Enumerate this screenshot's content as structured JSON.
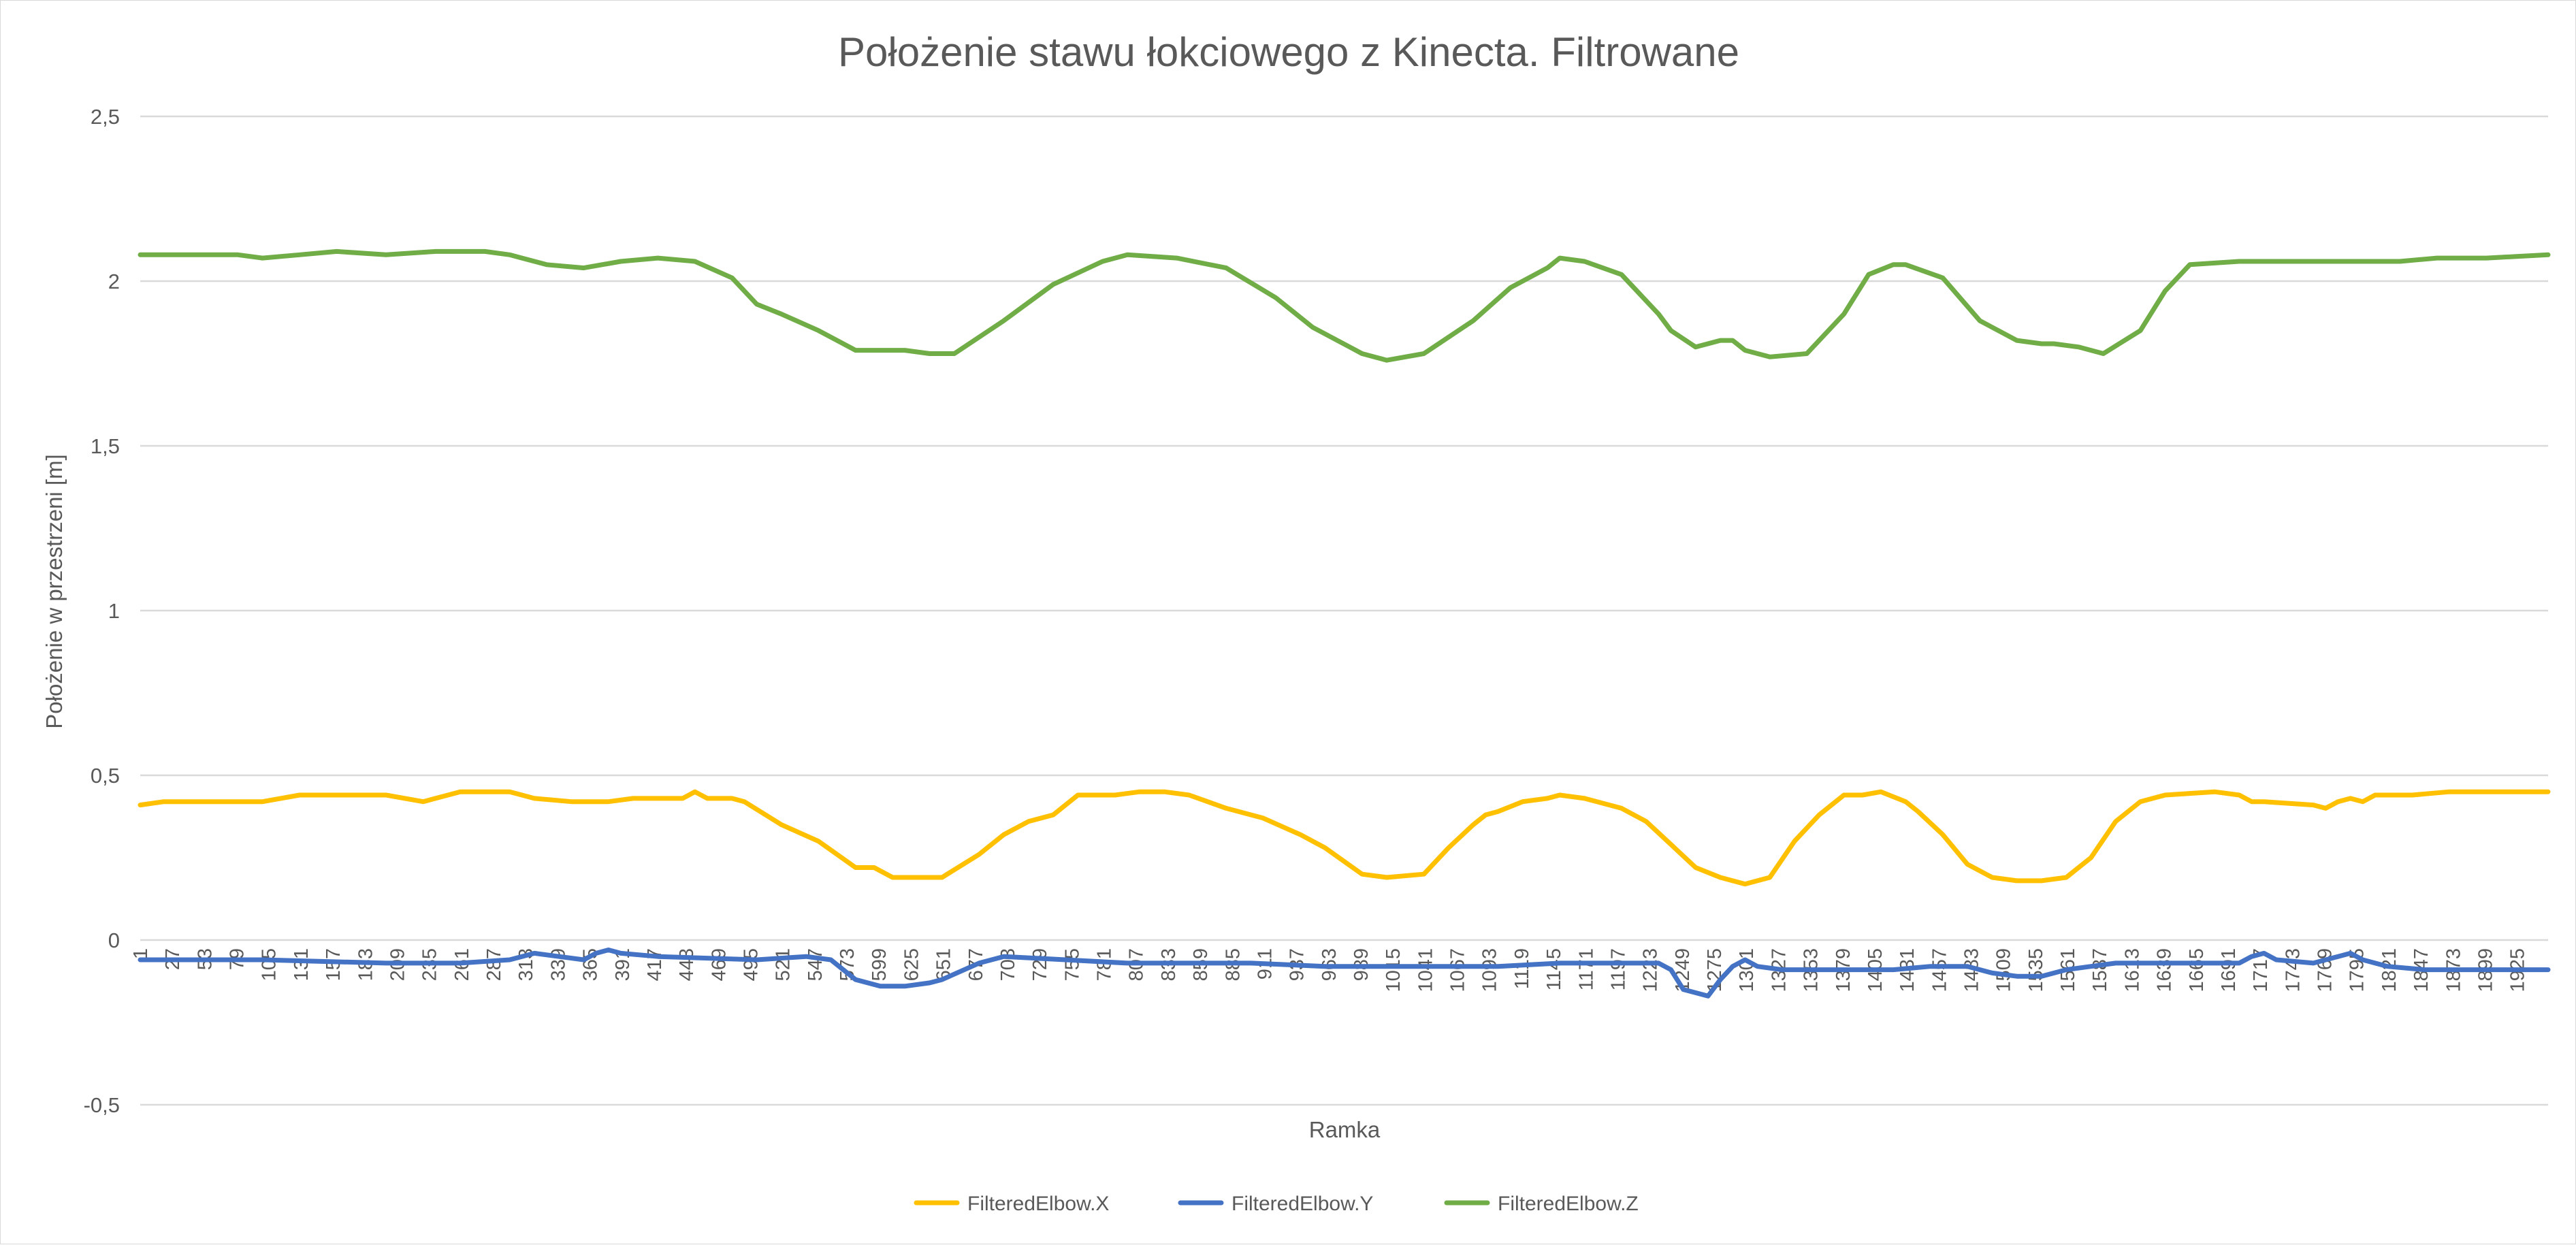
{
  "chart_data": {
    "type": "line",
    "title": "Położenie stawu łokciowego z Kinecta. Filtrowane",
    "xlabel": "Ramka",
    "ylabel": "Położenie w przestrzeni [m]",
    "ylim": [
      -0.5,
      2.5
    ],
    "xlim": [
      1,
      1950
    ],
    "y_ticks": [
      "2,5",
      "2",
      "1,5",
      "1",
      "0,5",
      "0",
      "-0,5"
    ],
    "x_tick_labels": [
      "1",
      "27",
      "53",
      "79",
      "105",
      "131",
      "157",
      "183",
      "209",
      "235",
      "261",
      "287",
      "313",
      "339",
      "365",
      "391",
      "417",
      "443",
      "469",
      "495",
      "521",
      "547",
      "573",
      "599",
      "625",
      "651",
      "677",
      "703",
      "729",
      "755",
      "781",
      "807",
      "833",
      "859",
      "885",
      "911",
      "937",
      "963",
      "989",
      "1015",
      "1041",
      "1067",
      "1093",
      "1119",
      "1145",
      "1171",
      "1197",
      "1223",
      "1249",
      "1275",
      "1301",
      "1327",
      "1353",
      "1379",
      "1405",
      "1431",
      "1457",
      "1483",
      "1509",
      "1535",
      "1561",
      "1587",
      "1613",
      "1639",
      "1665",
      "1691",
      "1717",
      "1743",
      "1769",
      "1795",
      "1821",
      "1847",
      "1873",
      "1899",
      "1925"
    ],
    "grid": true,
    "legend_position": "bottom",
    "series": [
      {
        "name": "FilteredElbow.X",
        "color": "#ffc000",
        "x": [
          1,
          20,
          60,
          100,
          130,
          160,
          200,
          230,
          260,
          300,
          320,
          350,
          380,
          400,
          440,
          450,
          460,
          480,
          490,
          520,
          550,
          580,
          595,
          610,
          620,
          650,
          680,
          700,
          720,
          740,
          760,
          790,
          810,
          830,
          850,
          880,
          910,
          940,
          960,
          990,
          1010,
          1040,
          1060,
          1080,
          1090,
          1100,
          1120,
          1140,
          1150,
          1170,
          1200,
          1220,
          1240,
          1260,
          1280,
          1300,
          1310,
          1320,
          1340,
          1360,
          1380,
          1395,
          1410,
          1430,
          1440,
          1460,
          1480,
          1500,
          1520,
          1540,
          1560,
          1580,
          1600,
          1620,
          1640,
          1680,
          1700,
          1710,
          1720,
          1760,
          1770,
          1780,
          1790,
          1800,
          1810,
          1840,
          1870,
          1900,
          1950
        ],
        "y": [
          0.41,
          0.42,
          0.42,
          0.42,
          0.44,
          0.44,
          0.44,
          0.42,
          0.45,
          0.45,
          0.43,
          0.42,
          0.42,
          0.43,
          0.43,
          0.45,
          0.43,
          0.43,
          0.42,
          0.35,
          0.3,
          0.22,
          0.22,
          0.19,
          0.19,
          0.19,
          0.26,
          0.32,
          0.36,
          0.38,
          0.44,
          0.44,
          0.45,
          0.45,
          0.44,
          0.4,
          0.37,
          0.32,
          0.28,
          0.2,
          0.19,
          0.2,
          0.28,
          0.35,
          0.38,
          0.39,
          0.42,
          0.43,
          0.44,
          0.43,
          0.4,
          0.36,
          0.29,
          0.22,
          0.19,
          0.17,
          0.18,
          0.19,
          0.3,
          0.38,
          0.44,
          0.44,
          0.45,
          0.42,
          0.39,
          0.32,
          0.23,
          0.19,
          0.18,
          0.18,
          0.19,
          0.25,
          0.36,
          0.42,
          0.44,
          0.45,
          0.44,
          0.42,
          0.42,
          0.41,
          0.4,
          0.42,
          0.43,
          0.42,
          0.44,
          0.44,
          0.45,
          0.45,
          0.45
        ]
      },
      {
        "name": "FilteredElbow.Y",
        "color": "#4472c4",
        "x": [
          1,
          10,
          100,
          200,
          260,
          300,
          310,
          320,
          340,
          360,
          370,
          380,
          390,
          420,
          500,
          540,
          560,
          580,
          600,
          620,
          640,
          650,
          680,
          700,
          750,
          800,
          850,
          900,
          960,
          990,
          1040,
          1100,
          1150,
          1200,
          1230,
          1240,
          1250,
          1270,
          1280,
          1290,
          1300,
          1310,
          1330,
          1360,
          1390,
          1420,
          1450,
          1480,
          1500,
          1520,
          1540,
          1560,
          1580,
          1600,
          1650,
          1700,
          1710,
          1720,
          1730,
          1760,
          1780,
          1790,
          1800,
          1820,
          1850,
          1900,
          1950
        ],
        "y": [
          -0.06,
          -0.06,
          -0.06,
          -0.07,
          -0.07,
          -0.06,
          -0.05,
          -0.04,
          -0.05,
          -0.06,
          -0.04,
          -0.03,
          -0.04,
          -0.05,
          -0.06,
          -0.05,
          -0.06,
          -0.12,
          -0.14,
          -0.14,
          -0.13,
          -0.12,
          -0.07,
          -0.05,
          -0.06,
          -0.07,
          -0.07,
          -0.07,
          -0.08,
          -0.08,
          -0.08,
          -0.08,
          -0.07,
          -0.07,
          -0.07,
          -0.09,
          -0.15,
          -0.17,
          -0.12,
          -0.08,
          -0.06,
          -0.08,
          -0.09,
          -0.09,
          -0.09,
          -0.09,
          -0.08,
          -0.08,
          -0.1,
          -0.11,
          -0.11,
          -0.09,
          -0.08,
          -0.07,
          -0.07,
          -0.07,
          -0.05,
          -0.04,
          -0.06,
          -0.07,
          -0.05,
          -0.04,
          -0.06,
          -0.08,
          -0.09,
          -0.09,
          -0.09
        ]
      },
      {
        "name": "FilteredElbow.Z",
        "color": "#70ad47",
        "x": [
          1,
          80,
          100,
          130,
          160,
          200,
          240,
          280,
          300,
          330,
          360,
          390,
          420,
          450,
          480,
          500,
          520,
          550,
          580,
          600,
          620,
          640,
          660,
          700,
          740,
          780,
          800,
          840,
          880,
          920,
          950,
          980,
          990,
          1010,
          1040,
          1080,
          1110,
          1140,
          1150,
          1170,
          1200,
          1230,
          1240,
          1260,
          1280,
          1290,
          1300,
          1320,
          1350,
          1380,
          1400,
          1420,
          1430,
          1460,
          1490,
          1520,
          1540,
          1550,
          1570,
          1590,
          1620,
          1640,
          1660,
          1700,
          1760,
          1800,
          1830,
          1860,
          1900,
          1950
        ],
        "y": [
          2.08,
          2.08,
          2.07,
          2.08,
          2.09,
          2.08,
          2.09,
          2.09,
          2.08,
          2.05,
          2.04,
          2.06,
          2.07,
          2.06,
          2.01,
          1.93,
          1.9,
          1.85,
          1.79,
          1.79,
          1.79,
          1.78,
          1.78,
          1.88,
          1.99,
          2.06,
          2.08,
          2.07,
          2.04,
          1.95,
          1.86,
          1.8,
          1.78,
          1.76,
          1.78,
          1.88,
          1.98,
          2.04,
          2.07,
          2.06,
          2.02,
          1.9,
          1.85,
          1.8,
          1.82,
          1.82,
          1.79,
          1.77,
          1.78,
          1.9,
          2.02,
          2.05,
          2.05,
          2.01,
          1.88,
          1.82,
          1.81,
          1.81,
          1.8,
          1.78,
          1.85,
          1.97,
          2.05,
          2.06,
          2.06,
          2.06,
          2.06,
          2.07,
          2.07,
          2.08
        ]
      }
    ]
  }
}
